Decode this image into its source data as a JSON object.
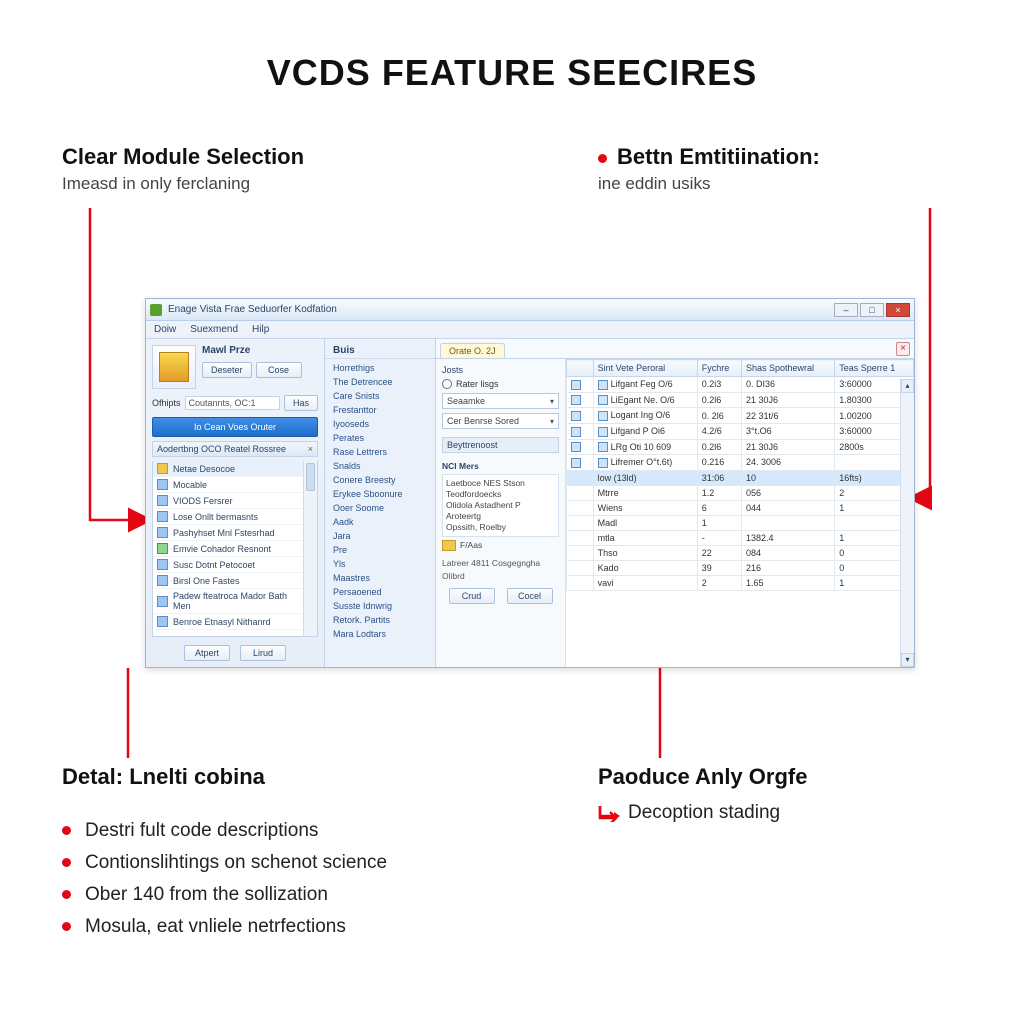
{
  "page": {
    "title": "VCDS FEATURE SEECIRES"
  },
  "callouts": {
    "top_left": {
      "title": "Clear Module Selection",
      "sub": "Imeasd in only ferclaning"
    },
    "top_right": {
      "title": "Bettn Emtitiination:",
      "sub": "ine eddin usiks"
    },
    "bottom_left": {
      "title": "Detal: Lnelti cobina"
    },
    "bottom_right": {
      "title": "Paoduce Anly Orgfe",
      "item": "Decoption stading"
    }
  },
  "bullets": [
    "Destri fult code descriptions",
    "Contionslihtings on schenot science",
    "Ober 140 from the sollization",
    "Mosula, eat vnliele netrfections"
  ],
  "window": {
    "title": "Enage Vista Frae Seduorfer Kodfation",
    "winbtns": {
      "min": "–",
      "max": "□",
      "close": "×"
    },
    "menubar": [
      "Doiw",
      "Suexmend",
      "Hilp"
    ],
    "left": {
      "bigbtn_label": "Mawl Prze",
      "btn_desoter": "Deseter",
      "btn_cose": "Cose",
      "options_label": "Ofhipts",
      "options_value": "Coutannts, OC:1",
      "options_btn": "Has",
      "bluebar": "Io Cean Voes Oruter",
      "panel_title": "Aodertbng OCO Reatel Rossree",
      "panel_x": "×",
      "tree": [
        {
          "icon": "y",
          "label": "Netae Desocoe",
          "sel": true
        },
        {
          "icon": "b",
          "label": "Mocable"
        },
        {
          "icon": "b",
          "label": "VIODS Fersrer"
        },
        {
          "icon": "b",
          "label": "Lose Onllt bermasnts"
        },
        {
          "icon": "b",
          "label": "Pashyhset Mnl Fstesrhad"
        },
        {
          "icon": "g",
          "label": "Emvie Cohador Resnont"
        },
        {
          "icon": "b",
          "label": "Susc Dotnt Petocoet"
        },
        {
          "icon": "b",
          "label": "Birsl One Fastes"
        },
        {
          "icon": "b",
          "label": "Padew fteatroca Mador Bath Men"
        },
        {
          "icon": "b",
          "label": "Benroe Etnasyl Nithanrd"
        }
      ],
      "btn_atpert": "Atpert",
      "btn_lirud": "Lirud"
    },
    "mid": {
      "head": "Buis",
      "items": [
        "Horrethigs",
        "The Detrencee",
        "Care Snists",
        "Frestanttor",
        "Iyooseds",
        "Perates",
        "Rase Lettrers",
        "Snalds",
        "Conere Breesty",
        "Erykee Sboonure",
        "Ooer Soome",
        "Aadk",
        "Jara",
        "Pre",
        "Yls",
        "Maastres",
        "Persaoened",
        "Susste Idnwrig",
        "Retork. Partits",
        "Mara Lodtars"
      ]
    },
    "right": {
      "tab": "Orate O. 2J",
      "tabclose": "×",
      "filter": {
        "label": "Josts",
        "radio": "Rater lisgs",
        "combo1": "Seaamke",
        "combo2": "Cer Benrse Sored",
        "section": "Beyttrenoost"
      },
      "info": {
        "head": "NCI Mers",
        "line1": "Laetboce NES Stson Teodfordoecks",
        "line2": "Olidola Astadhent P Aroteertg",
        "line3": "Opssith, Roelby",
        "fold_label": "F/Aas",
        "foot1": "Latreer 4811 Cosgegngha",
        "foot2": "Olibrd",
        "btn_crud": "Crud",
        "btn_cocel": "Cocel"
      },
      "table": {
        "columns": [
          "",
          "Sint Vete Peroral",
          "Fychre",
          "Shas Spothewral",
          "Teas Sperre 1"
        ],
        "rows": [
          [
            "i",
            "Lifgant Feg O/6",
            "0.2i3",
            "0. DI36",
            "3:60000"
          ],
          [
            "i",
            "LiEgant Ne. O/6",
            "0.2l6",
            "21 30J6",
            "1.80300"
          ],
          [
            "i",
            "Logant Ing O/6",
            "0. 2l6",
            "22 31t/6",
            "1.00200"
          ],
          [
            "i",
            "Lifgand P Oi6",
            "4.2/6",
            "3°t.O6",
            "3:60000"
          ],
          [
            "i",
            "LRg Oti 10 609",
            "0.2l6",
            "21 30J6",
            "2800s"
          ],
          [
            "i",
            "Lifremer O°t.6t)",
            "0.216",
            "24. 3006",
            ""
          ],
          [
            "",
            "low (13ld)",
            "31:06",
            "10",
            "16fts)"
          ],
          [
            "",
            "Mtrre",
            "1.2",
            "056",
            "2"
          ],
          [
            "",
            "Wiens",
            "6",
            "044",
            "1"
          ],
          [
            "",
            "Madl",
            "1",
            "",
            ""
          ],
          [
            "",
            "mtla",
            "-",
            "1382.4",
            "1"
          ],
          [
            "",
            "Thso",
            "22",
            "084",
            "0"
          ],
          [
            "",
            "Kado",
            "39",
            "216",
            "0"
          ],
          [
            "",
            "vavi",
            "2",
            "1.65",
            "1"
          ]
        ],
        "hl_row": 6
      }
    }
  },
  "colors": {
    "accent_red": "#e30613",
    "win_border": "#9fb7d4",
    "blue_btn": "#1e6dc9"
  }
}
